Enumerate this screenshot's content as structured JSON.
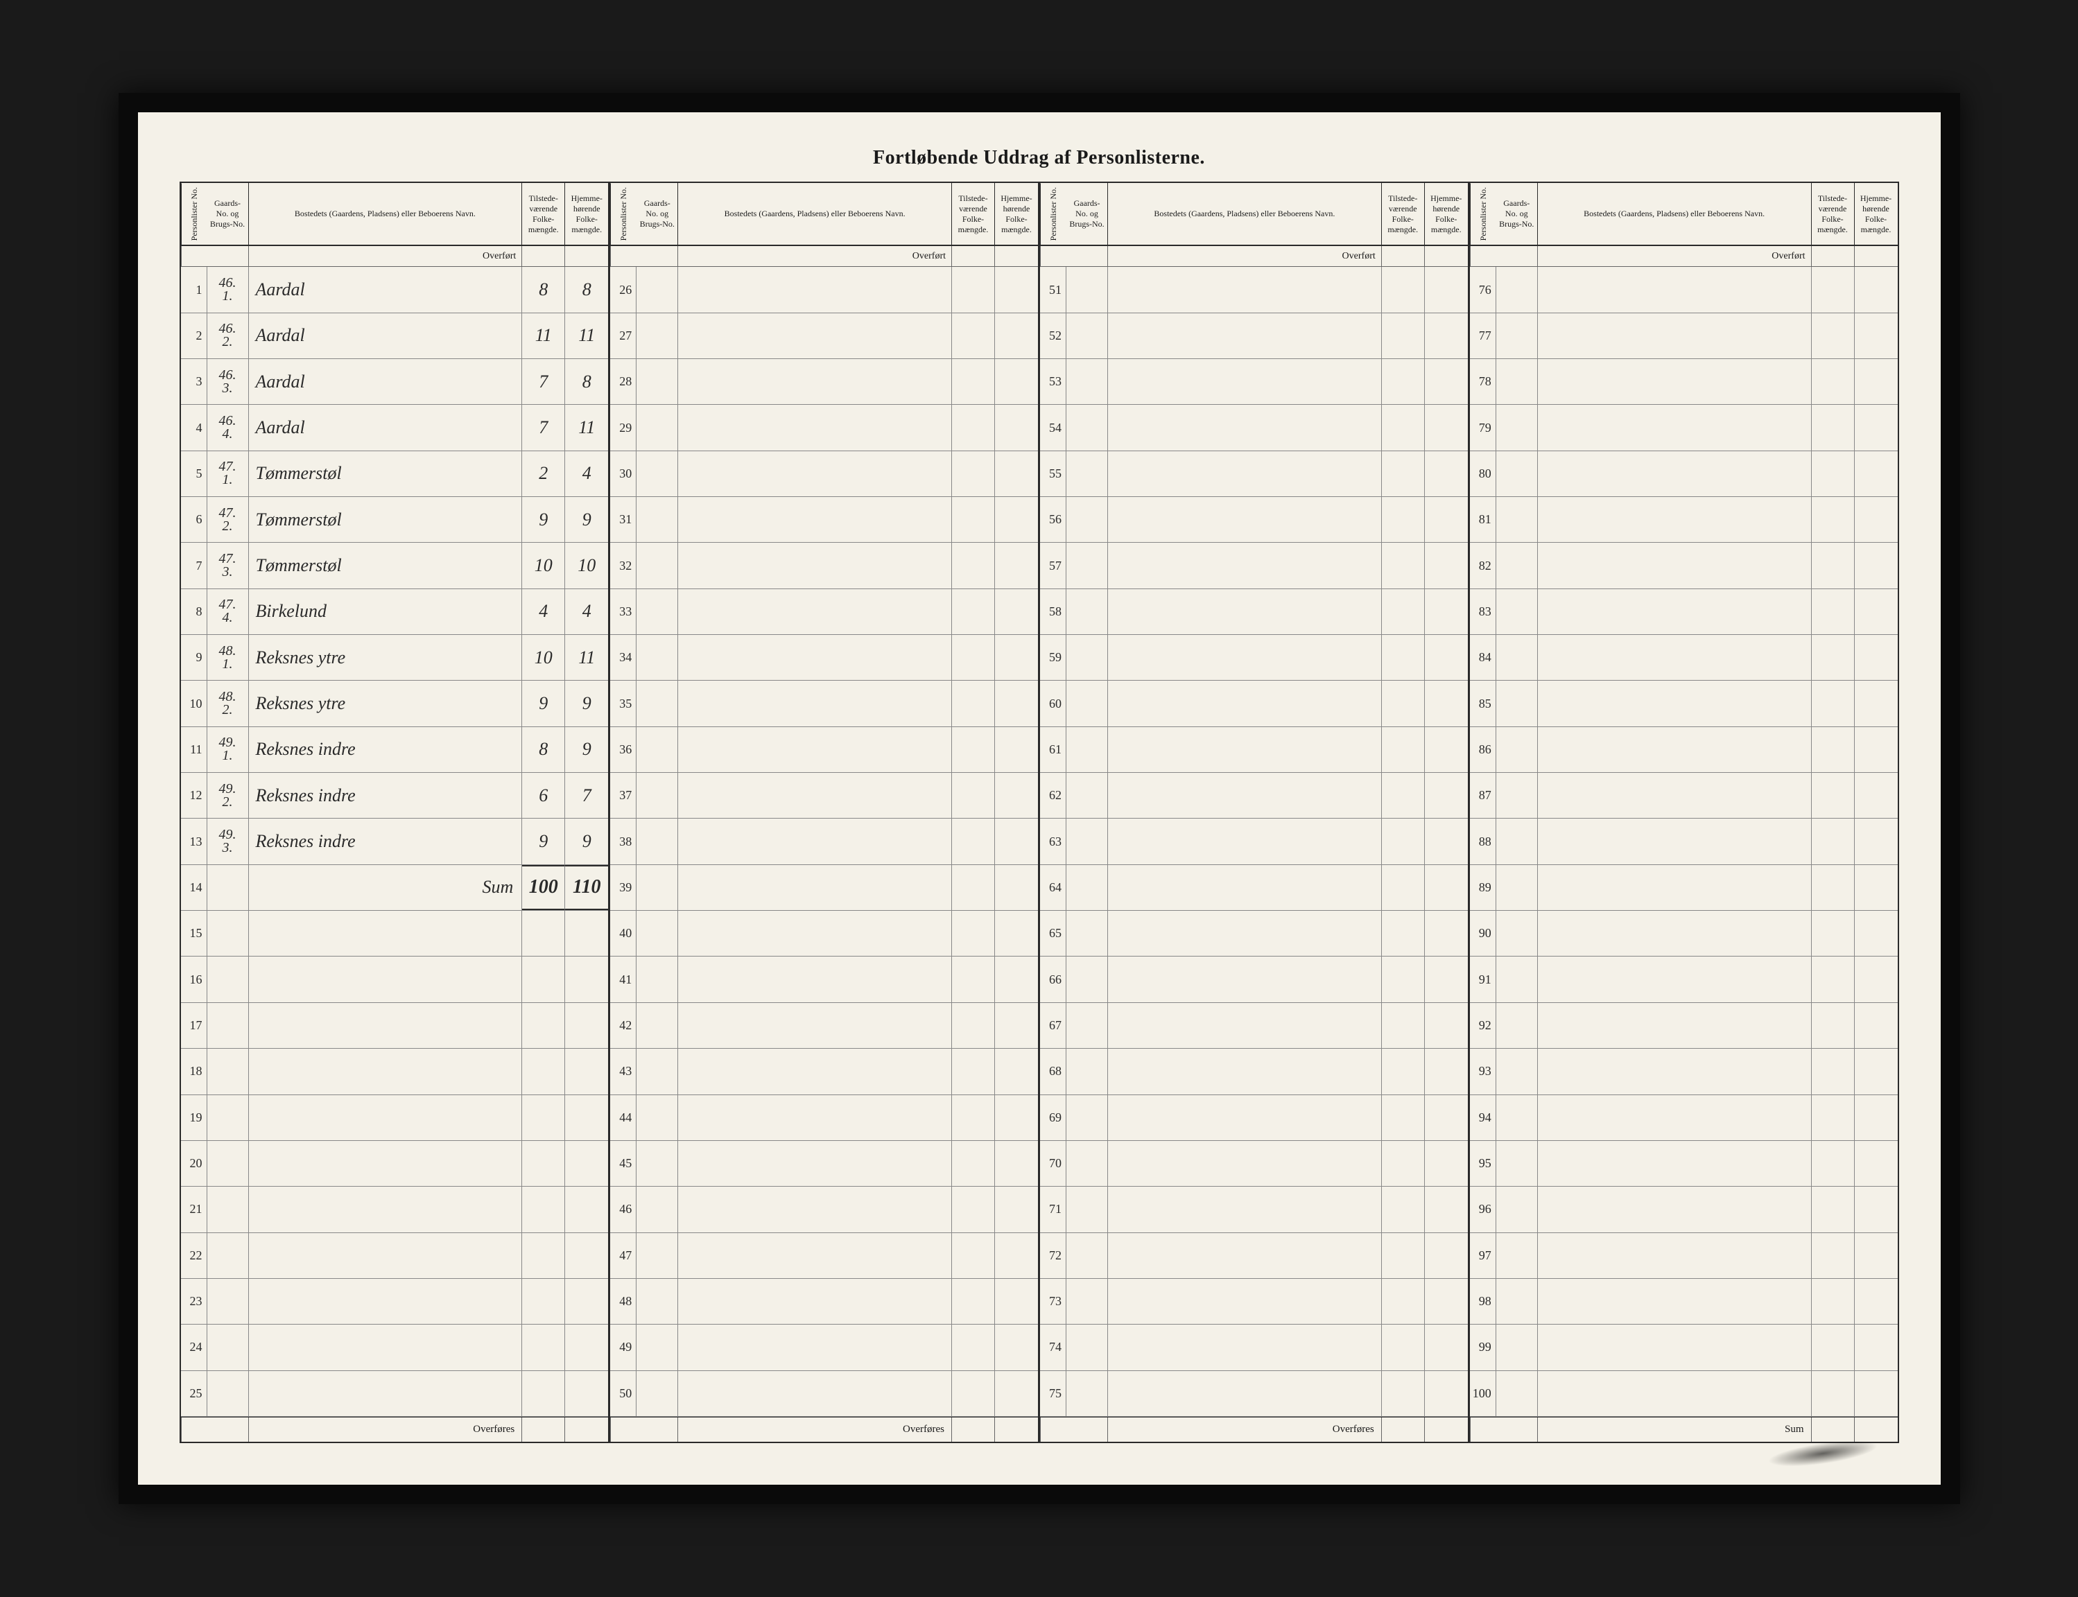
{
  "title": "Fortløbende Uddrag af Personlisterne.",
  "columns": {
    "pl": "Personlister No.",
    "gb": "Gaards-No. og Brugs-No.",
    "bost": "Bostedets (Gaardens, Pladsens) eller Beboerens Navn.",
    "tf": "Tilstede-værende Folke-mængde.",
    "hf": "Hjemme-hørende Folke-mængde."
  },
  "overfort_label": "Overført",
  "overfores_label": "Overføres",
  "sum_label": "Sum",
  "panels": [
    {
      "row_start": 1,
      "row_end": 25,
      "footer": "Overføres",
      "entries": [
        {
          "g": "46",
          "b": "1",
          "name": "Aardal",
          "tf": "8",
          "hf": "8"
        },
        {
          "g": "46",
          "b": "2",
          "name": "Aardal",
          "tf": "11",
          "hf": "11"
        },
        {
          "g": "46",
          "b": "3",
          "name": "Aardal",
          "tf": "7",
          "hf": "8"
        },
        {
          "g": "46",
          "b": "4",
          "name": "Aardal",
          "tf": "7",
          "hf": "11"
        },
        {
          "g": "47",
          "b": "1",
          "name": "Tømmerstøl",
          "tf": "2",
          "hf": "4"
        },
        {
          "g": "47",
          "b": "2",
          "name": "Tømmerstøl",
          "tf": "9",
          "hf": "9"
        },
        {
          "g": "47",
          "b": "3",
          "name": "Tømmerstøl",
          "tf": "10",
          "hf": "10"
        },
        {
          "g": "47",
          "b": "4",
          "name": "Birkelund",
          "tf": "4",
          "hf": "4"
        },
        {
          "g": "48",
          "b": "1",
          "name": "Reksnes ytre",
          "tf": "10",
          "hf": "11"
        },
        {
          "g": "48",
          "b": "2",
          "name": "Reksnes ytre",
          "tf": "9",
          "hf": "9"
        },
        {
          "g": "49",
          "b": "1",
          "name": "Reksnes indre",
          "tf": "8",
          "hf": "9"
        },
        {
          "g": "49",
          "b": "2",
          "name": "Reksnes indre",
          "tf": "6",
          "hf": "7"
        },
        {
          "g": "49",
          "b": "3",
          "name": "Reksnes indre",
          "tf": "9",
          "hf": "9"
        }
      ],
      "sum": {
        "label": "Sum",
        "tf": "100",
        "hf": "110"
      }
    },
    {
      "row_start": 26,
      "row_end": 50,
      "footer": "Overføres",
      "entries": []
    },
    {
      "row_start": 51,
      "row_end": 75,
      "footer": "Overføres",
      "entries": []
    },
    {
      "row_start": 76,
      "row_end": 100,
      "footer": "Sum",
      "entries": []
    }
  ],
  "colors": {
    "page_bg": "#f4f1e8",
    "frame_bg": "#0a0a0a",
    "ink": "#2a2a2a",
    "rule": "#2a2a2a",
    "light_rule": "#888"
  }
}
